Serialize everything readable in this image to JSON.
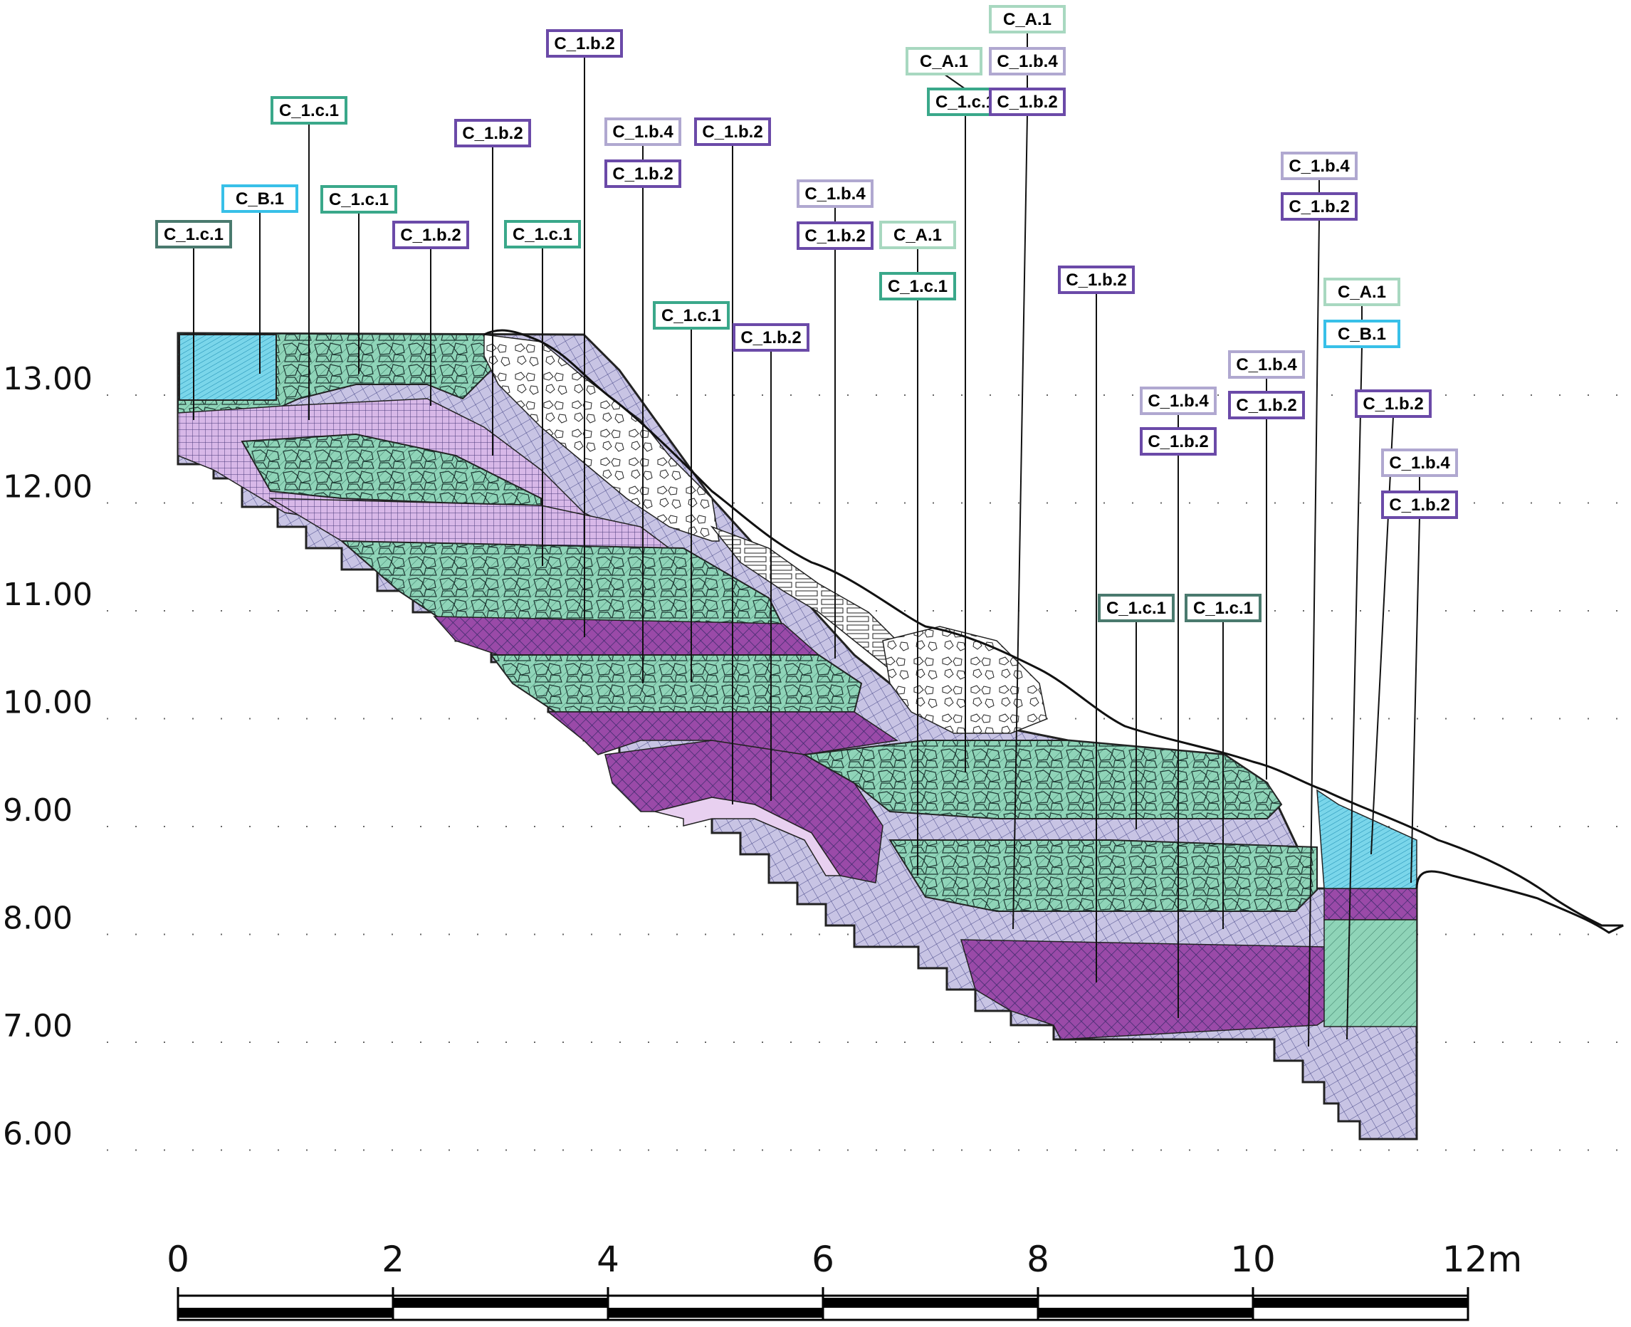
{
  "elevation_axis": {
    "labels": [
      "13.00",
      "12.00",
      "11.00",
      "10.00",
      "9.00",
      "8.00",
      "7.00",
      "6.00"
    ],
    "values": [
      13,
      12,
      11,
      10,
      9,
      8,
      7,
      6
    ]
  },
  "scale_bar": {
    "labels": [
      "0",
      "2",
      "4",
      "6",
      "8",
      "10",
      "12m"
    ],
    "values": [
      0,
      2,
      4,
      6,
      8,
      10,
      12
    ]
  },
  "colors": {
    "C_1.c.1": "#3aa88a",
    "C_1.c.1_dark": "#4a7a6e",
    "C_1.b.2": "#6b4aa8",
    "C_1.b.4": "#b0a8d0",
    "C_A.1": "#a8d8c0",
    "C_B.1": "#38c0e8",
    "fill_green": "#8fd4b8",
    "fill_purple_dark": "#8a3a9a",
    "fill_purple_light": "#d8b8e8",
    "fill_lavender": "#c8c4e4",
    "fill_cyan": "#5ac8e0"
  },
  "tags": [
    {
      "text": "C_1.c.1",
      "style": "C_1.c.1_dark"
    },
    {
      "text": "C_B.1",
      "style": "C_B.1"
    },
    {
      "text": "C_1.c.1",
      "style": "C_1.c.1"
    },
    {
      "text": "C_1.c.1",
      "style": "C_1.c.1"
    },
    {
      "text": "C_1.b.2",
      "style": "C_1.b.2"
    },
    {
      "text": "C_1.b.2",
      "style": "C_1.b.2"
    },
    {
      "text": "C_1.c.1",
      "style": "C_1.c.1"
    },
    {
      "text": "C_1.b.2",
      "style": "C_1.b.2"
    },
    {
      "text": "C_1.b.4",
      "style": "C_1.b.4"
    },
    {
      "text": "C_1.b.2",
      "style": "C_1.b.2"
    },
    {
      "text": "C_1.c.1",
      "style": "C_1.c.1"
    },
    {
      "text": "C_1.b.2",
      "style": "C_1.b.2"
    },
    {
      "text": "C_1.b.2",
      "style": "C_1.b.2"
    },
    {
      "text": "C_1.b.4",
      "style": "C_1.b.4"
    },
    {
      "text": "C_1.b.2",
      "style": "C_1.b.2"
    },
    {
      "text": "C_A.1",
      "style": "C_A.1"
    },
    {
      "text": "C_1.c.1",
      "style": "C_1.c.1"
    },
    {
      "text": "C_A.1",
      "style": "C_A.1"
    },
    {
      "text": "C_1.c.1",
      "style": "C_1.c.1"
    },
    {
      "text": "C_A.1",
      "style": "C_A.1"
    },
    {
      "text": "C_1.b.4",
      "style": "C_1.b.4"
    },
    {
      "text": "C_1.b.2",
      "style": "C_1.b.2"
    },
    {
      "text": "C_1.b.2",
      "style": "C_1.b.2"
    },
    {
      "text": "C_1.c.1",
      "style": "C_1.c.1_dark"
    },
    {
      "text": "C_1.b.4",
      "style": "C_1.b.4"
    },
    {
      "text": "C_1.b.2",
      "style": "C_1.b.2"
    },
    {
      "text": "C_1.c.1",
      "style": "C_1.c.1_dark"
    },
    {
      "text": "C_1.b.4",
      "style": "C_1.b.4"
    },
    {
      "text": "C_1.b.2",
      "style": "C_1.b.2"
    },
    {
      "text": "C_1.b.4",
      "style": "C_1.b.4"
    },
    {
      "text": "C_1.b.2",
      "style": "C_1.b.2"
    },
    {
      "text": "C_A.1",
      "style": "C_A.1"
    },
    {
      "text": "C_B.1",
      "style": "C_B.1"
    },
    {
      "text": "C_1.b.2",
      "style": "C_1.b.2"
    },
    {
      "text": "C_1.b.4",
      "style": "C_1.b.4"
    },
    {
      "text": "C_1.b.2",
      "style": "C_1.b.2"
    }
  ]
}
